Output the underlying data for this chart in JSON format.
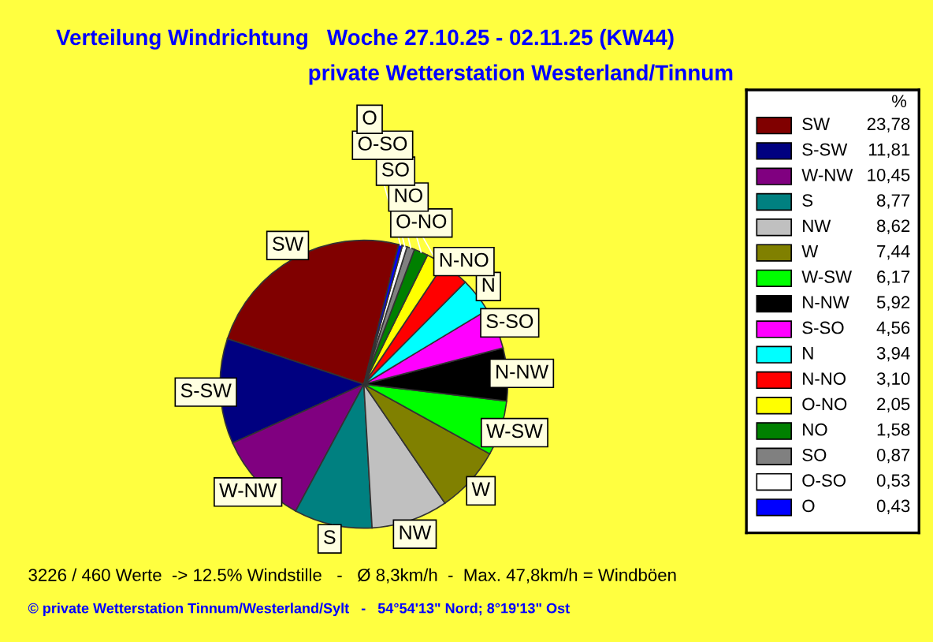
{
  "chart_data": {
    "type": "pie",
    "title": "Verteilung Windrichtung   Woche 27.10.25 - 02.11.25 (KW44)",
    "subtitle": "private Wetterstation Westerland/Tinnum",
    "categories": [
      "SW",
      "S-SW",
      "W-NW",
      "S",
      "NW",
      "W",
      "W-SW",
      "N-NW",
      "S-SO",
      "N",
      "N-NO",
      "O-NO",
      "NO",
      "SO",
      "O-SO",
      "O"
    ],
    "values": [
      23.78,
      11.81,
      10.45,
      8.77,
      8.62,
      7.44,
      6.17,
      5.92,
      4.56,
      3.94,
      3.1,
      2.05,
      1.58,
      0.87,
      0.53,
      0.43
    ],
    "value_labels": [
      "23,78",
      "11,81",
      "10,45",
      "8,77",
      "8,62",
      "7,44",
      "6,17",
      "5,92",
      "4,56",
      "3,94",
      "3,10",
      "2,05",
      "1,58",
      "0,87",
      "0,53",
      "0,43"
    ],
    "colors": [
      "#800000",
      "#000080",
      "#800080",
      "#008080",
      "#c0c0c0",
      "#808000",
      "#00ff00",
      "#000000",
      "#ff00ff",
      "#00ffff",
      "#ff0000",
      "#ffff00",
      "#008000",
      "#808080",
      "#ffffff",
      "#0000ff"
    ],
    "legend": "right",
    "legend_title": "%",
    "annotations": [
      "3226 / 460 Werte  -> 12.5% Windstille   -   Ø 8,3km/h  -  Max. 47,8km/h = Windböen",
      "© private Wetterstation Tinnum/Westerland/Sylt   -   54°54'13\" Nord; 8°19'13\" Ost"
    ]
  }
}
